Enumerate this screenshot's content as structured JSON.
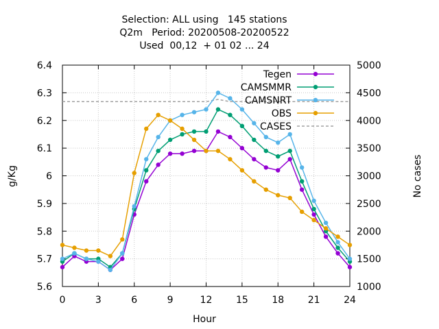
{
  "chart_data": {
    "type": "line",
    "title_lines": [
      "Selection: ALL using   145 stations",
      "Q2m   Period: 20200508-20200522",
      "Used  00,12  + 01 02 ... 24"
    ],
    "xlabel": "Hour",
    "ylabel": "g/Kg",
    "y2label": "No cases",
    "xlim": [
      0,
      24
    ],
    "ylim": [
      5.6,
      6.4
    ],
    "y2lim": [
      1000,
      5000
    ],
    "xticks": [
      "0",
      "3",
      "6",
      "9",
      "12",
      "15",
      "18",
      "21",
      "24"
    ],
    "xtick_values": [
      0,
      3,
      6,
      9,
      12,
      15,
      18,
      21,
      24
    ],
    "yticks": [
      "5.6",
      "5.7",
      "5.8",
      "5.9",
      "6",
      "6.1",
      "6.2",
      "6.3",
      "6.4"
    ],
    "ytick_values": [
      5.6,
      5.7,
      5.8,
      5.9,
      6.0,
      6.1,
      6.2,
      6.3,
      6.4
    ],
    "y2ticks": [
      "1000",
      "1500",
      "2000",
      "2500",
      "3000",
      "3500",
      "4000",
      "4500",
      "5000"
    ],
    "y2tick_values": [
      1000,
      1500,
      2000,
      2500,
      3000,
      3500,
      4000,
      4500,
      5000
    ],
    "grid": true,
    "legend_position": "top-right",
    "x": [
      0,
      1,
      2,
      3,
      4,
      5,
      6,
      7,
      8,
      9,
      10,
      11,
      12,
      13,
      14,
      15,
      16,
      17,
      18,
      19,
      20,
      21,
      22,
      23,
      24
    ],
    "series": [
      {
        "name": "Tegen",
        "color": "#9400d3",
        "marker": "circle",
        "values": [
          5.67,
          5.71,
          5.69,
          5.69,
          5.66,
          5.7,
          5.86,
          5.98,
          6.04,
          6.08,
          6.08,
          6.09,
          6.09,
          6.16,
          6.14,
          6.1,
          6.06,
          6.03,
          6.02,
          6.06,
          5.95,
          5.86,
          5.78,
          5.72,
          5.67
        ]
      },
      {
        "name": "CAMSMMR",
        "color": "#009e73",
        "marker": "circle",
        "values": [
          5.69,
          5.72,
          5.7,
          5.7,
          5.67,
          5.72,
          5.88,
          6.02,
          6.09,
          6.13,
          6.15,
          6.16,
          6.16,
          6.24,
          6.22,
          6.18,
          6.13,
          6.09,
          6.07,
          6.09,
          5.98,
          5.88,
          5.8,
          5.74,
          5.69
        ]
      },
      {
        "name": "CAMSNRT",
        "color": "#56b4e9",
        "marker": "circle",
        "values": [
          5.7,
          5.72,
          5.7,
          5.69,
          5.66,
          5.72,
          5.89,
          6.06,
          6.14,
          6.2,
          6.22,
          6.23,
          6.24,
          6.3,
          6.28,
          6.24,
          6.19,
          6.14,
          6.12,
          6.15,
          6.03,
          5.91,
          5.83,
          5.76,
          5.7
        ]
      },
      {
        "name": "OBS",
        "color": "#e69f00",
        "marker": "circle",
        "values": [
          5.75,
          5.74,
          5.73,
          5.73,
          5.71,
          5.77,
          6.01,
          6.17,
          6.22,
          6.2,
          6.17,
          6.13,
          6.09,
          6.09,
          6.06,
          6.02,
          5.98,
          5.95,
          5.93,
          5.92,
          5.87,
          5.84,
          5.81,
          5.78,
          5.75
        ]
      }
    ],
    "cases": {
      "name": "CASES",
      "color": "#a0a0a0",
      "style": "dashed",
      "axis": "y2",
      "values": [
        4340,
        4340,
        4340,
        4340,
        4340,
        4340,
        4340,
        4340,
        4340,
        4340,
        4340,
        4340,
        4340,
        4380,
        4340,
        4340,
        4340,
        4340,
        4340,
        4340,
        4340,
        4340,
        4340,
        4340,
        4340
      ]
    }
  }
}
